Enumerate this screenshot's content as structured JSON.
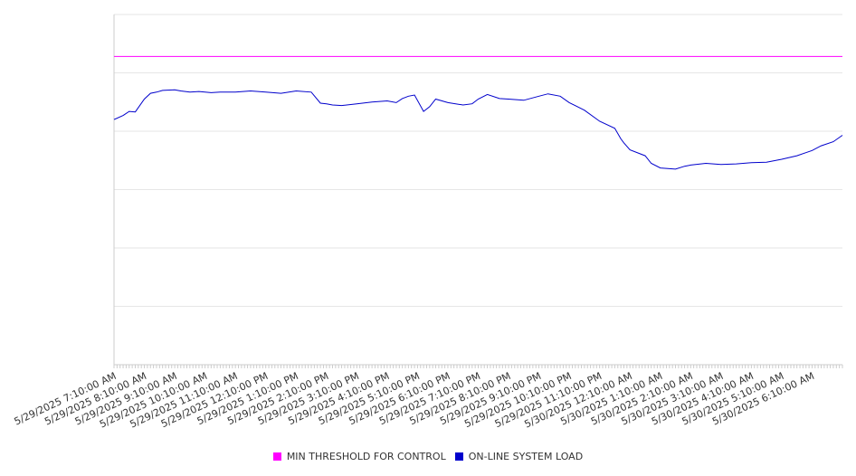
{
  "chart_data": {
    "type": "line",
    "title": "",
    "xlabel": "",
    "ylabel": "",
    "grid": true,
    "legend_position": "bottom-center",
    "x_tick_labels": [
      "5/29/2025 7:10:00 AM",
      "5/29/2025 8:10:00 AM",
      "5/29/2025 9:10:00 AM",
      "5/29/2025 10:10:00 AM",
      "5/29/2025 11:10:00 AM",
      "5/29/2025 12:10:00 PM",
      "5/29/2025 1:10:00 PM",
      "5/29/2025 2:10:00 PM",
      "5/29/2025 3:10:00 PM",
      "5/29/2025 4:10:00 PM",
      "5/29/2025 5:10:00 PM",
      "5/29/2025 6:10:00 PM",
      "5/29/2025 7:10:00 PM",
      "5/29/2025 8:10:00 PM",
      "5/29/2025 9:10:00 PM",
      "5/29/2025 10:10:00 PM",
      "5/29/2025 11:10:00 PM",
      "5/30/2025 12:10:00 AM",
      "5/30/2025 1:10:00 AM",
      "5/30/2025 2:10:00 AM",
      "5/30/2025 3:10:00 AM",
      "5/30/2025 4:10:00 AM",
      "5/30/2025 5:10:00 AM",
      "5/30/2025 6:10:00 AM"
    ],
    "xlim": [
      0,
      24
    ],
    "ylim": [
      0,
      6
    ],
    "y_gridlines": [
      1,
      2,
      3,
      4,
      5,
      6
    ],
    "series": [
      {
        "name": "MIN THRESHOLD FOR CONTROL",
        "color": "#ff00ff",
        "x": [
          0,
          24
        ],
        "y": [
          5.28,
          5.28
        ]
      },
      {
        "name": "ON-LINE SYSTEM LOAD",
        "color": "#0000cc",
        "x": [
          0,
          0.3,
          0.5,
          0.7,
          1.0,
          1.2,
          1.4,
          1.6,
          2.0,
          2.2,
          2.5,
          2.8,
          3.2,
          3.5,
          4.0,
          4.5,
          5.0,
          5.5,
          6.0,
          6.5,
          6.8,
          7.0,
          7.2,
          7.5,
          8.0,
          8.5,
          9.0,
          9.3,
          9.5,
          9.7,
          9.9,
          10.2,
          10.4,
          10.6,
          11.0,
          11.5,
          11.8,
          12.0,
          12.3,
          12.7,
          13.0,
          13.5,
          14.0,
          14.3,
          14.7,
          15.0,
          15.5,
          16.0,
          16.5,
          16.7,
          16.8,
          17.0,
          17.5,
          17.7,
          18.0,
          18.5,
          18.8,
          19.0,
          19.5,
          20.0,
          20.5,
          21.0,
          21.5,
          22.0,
          22.5,
          23.0,
          23.3,
          23.7,
          24.0
        ],
        "y": [
          4.2,
          4.27,
          4.34,
          4.33,
          4.55,
          4.65,
          4.67,
          4.7,
          4.71,
          4.69,
          4.67,
          4.68,
          4.66,
          4.67,
          4.67,
          4.69,
          4.67,
          4.65,
          4.69,
          4.67,
          4.48,
          4.47,
          4.45,
          4.44,
          4.47,
          4.5,
          4.52,
          4.49,
          4.56,
          4.6,
          4.62,
          4.34,
          4.42,
          4.55,
          4.49,
          4.45,
          4.47,
          4.55,
          4.63,
          4.56,
          4.55,
          4.53,
          4.6,
          4.64,
          4.6,
          4.49,
          4.36,
          4.17,
          4.05,
          3.87,
          3.8,
          3.68,
          3.58,
          3.45,
          3.37,
          3.35,
          3.4,
          3.42,
          3.45,
          3.43,
          3.44,
          3.46,
          3.47,
          3.52,
          3.58,
          3.67,
          3.75,
          3.82,
          3.93
        ]
      }
    ]
  }
}
